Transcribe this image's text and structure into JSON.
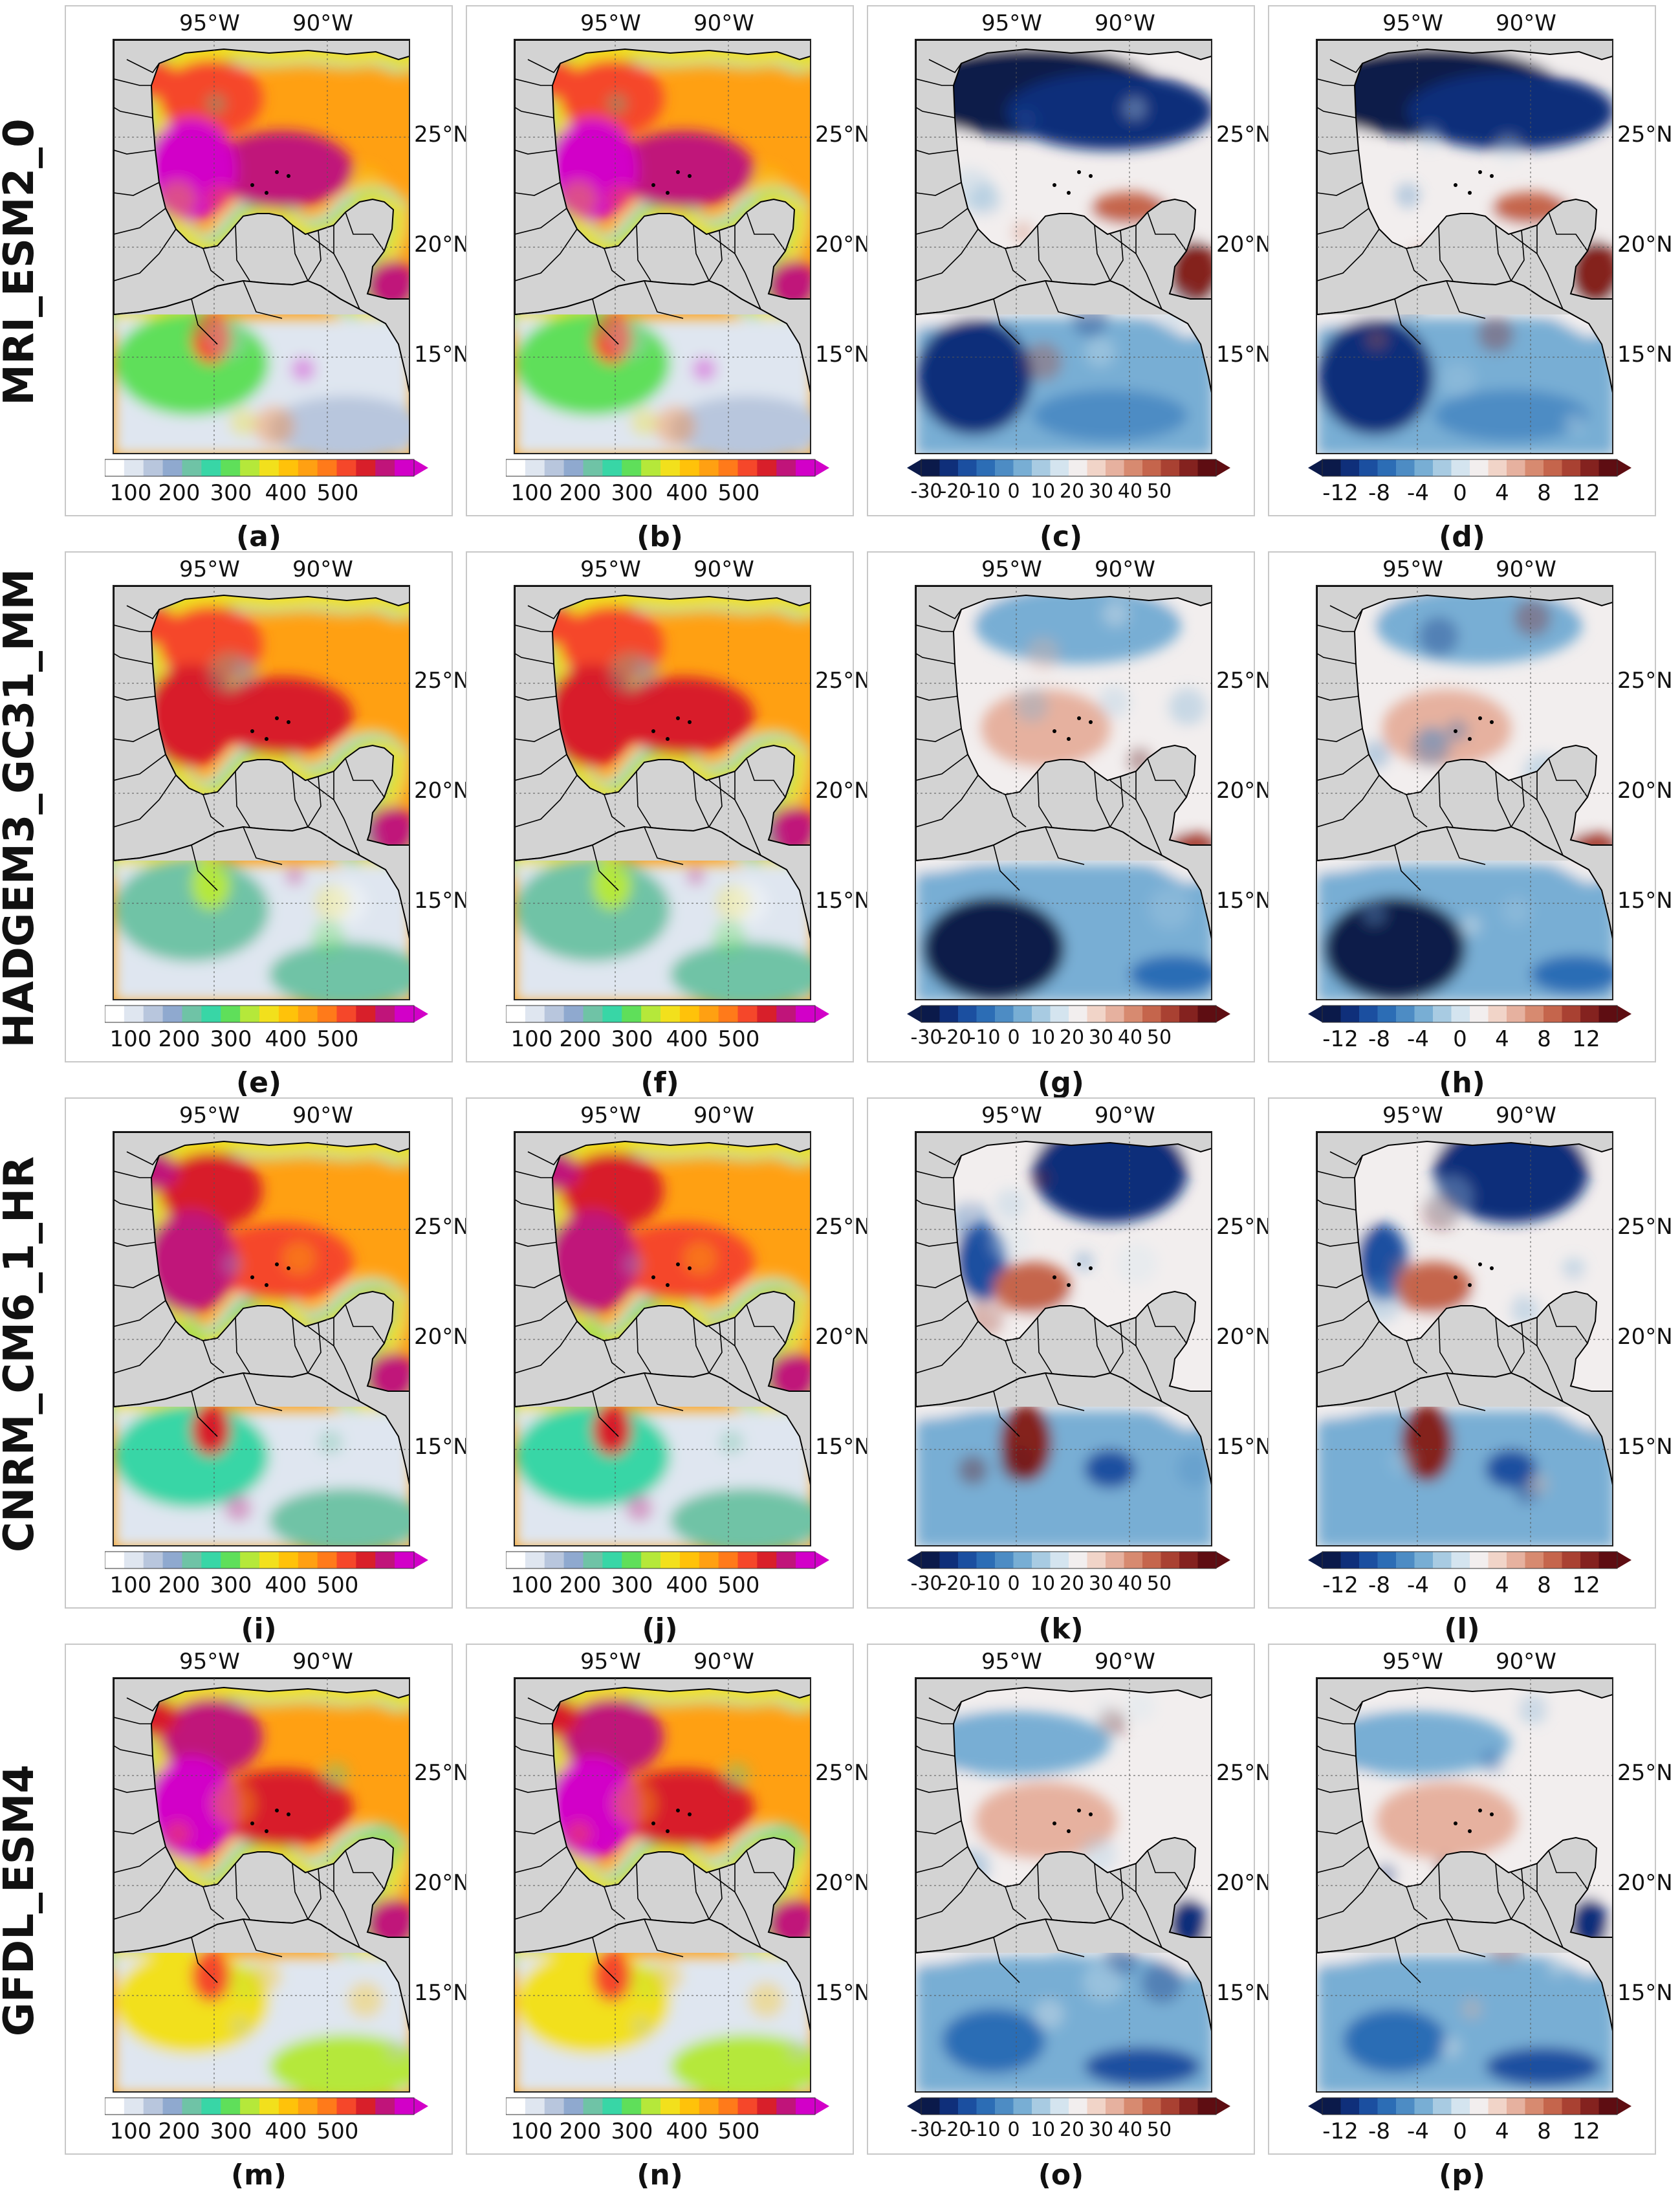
{
  "rows": [
    {
      "model": "MRI_ESM2_0",
      "panels": [
        {
          "label": "(a)",
          "kind": "abs",
          "variant": 0
        },
        {
          "label": "(b)",
          "kind": "abs",
          "variant": 0
        },
        {
          "label": "(c)",
          "kind": "diff",
          "variant": 0
        },
        {
          "label": "(d)",
          "kind": "diffsmall",
          "variant": 0
        }
      ]
    },
    {
      "model": "HADGEM3_GC31_MM",
      "panels": [
        {
          "label": "(e)",
          "kind": "abs",
          "variant": 1
        },
        {
          "label": "(f)",
          "kind": "abs",
          "variant": 1
        },
        {
          "label": "(g)",
          "kind": "diff",
          "variant": 1
        },
        {
          "label": "(h)",
          "kind": "diffsmall",
          "variant": 1
        }
      ]
    },
    {
      "model": "CNRM_CM6_1_HR",
      "panels": [
        {
          "label": "(i)",
          "kind": "abs",
          "variant": 2
        },
        {
          "label": "(j)",
          "kind": "abs",
          "variant": 2
        },
        {
          "label": "(k)",
          "kind": "diff",
          "variant": 2
        },
        {
          "label": "(l)",
          "kind": "diffsmall",
          "variant": 2
        }
      ]
    },
    {
      "model": "GFDL_ESM4",
      "panels": [
        {
          "label": "(m)",
          "kind": "abs",
          "variant": 3
        },
        {
          "label": "(n)",
          "kind": "abs",
          "variant": 3
        },
        {
          "label": "(o)",
          "kind": "diff",
          "variant": 3
        },
        {
          "label": "(p)",
          "kind": "diffsmall",
          "variant": 3
        }
      ]
    }
  ],
  "lon_labels": [
    "95°W",
    "90°W"
  ],
  "lat_labels": [
    "25°N",
    "20°N",
    "15°N"
  ],
  "colorbars": {
    "abs": {
      "ticks": [
        "100",
        "200",
        "300",
        "400",
        "500"
      ],
      "colors": [
        "#ffffff",
        "#dfe6f0",
        "#b8c6dd",
        "#8fa9cf",
        "#6fc3a6",
        "#38d6a6",
        "#5fdf5a",
        "#b5e83a",
        "#f2e01c",
        "#ffc20a",
        "#ffa012",
        "#ff7a1a",
        "#f5472a",
        "#d81f2a",
        "#c0147a",
        "#d200c8"
      ]
    },
    "diff": {
      "ticks": [
        "-30",
        "-20",
        "-10",
        "0",
        "10",
        "20",
        "30",
        "40",
        "50"
      ],
      "colors": [
        "#0b1a4a",
        "#0f2f7a",
        "#1b4fa0",
        "#2c6db5",
        "#4d8cc4",
        "#78aed4",
        "#a8cbe2",
        "#d4e4ef",
        "#f2eeee",
        "#f1d4c8",
        "#e6b19f",
        "#d78a70",
        "#c5654c",
        "#a94132",
        "#84221f",
        "#5e0d12"
      ]
    },
    "diffsmall": {
      "ticks": [
        "-12",
        "-8",
        "-4",
        "0",
        "4",
        "8",
        "12"
      ],
      "colors": [
        "#0b1a4a",
        "#0f2f7a",
        "#1b4fa0",
        "#2c6db5",
        "#4d8cc4",
        "#78aed4",
        "#a8cbe2",
        "#d4e4ef",
        "#f2eeee",
        "#f1d4c8",
        "#e6b19f",
        "#d78a70",
        "#c5654c",
        "#a94132",
        "#84221f",
        "#5e0d12"
      ]
    }
  }
}
